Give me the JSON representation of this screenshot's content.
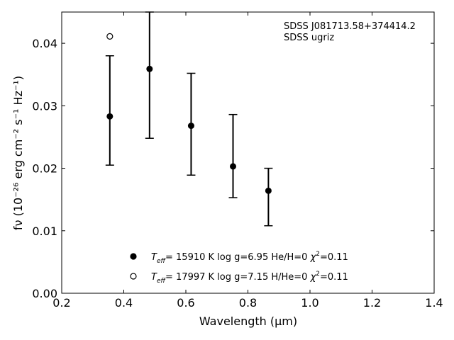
{
  "chart_data": {
    "type": "scatter",
    "annotation": [
      "SDSS J081713.58+374414.2",
      "SDSS ugriz"
    ],
    "xlabel": "Wavelength (μm)",
    "ylabel": "fν (10⁻²⁶ erg cm⁻² s⁻¹ Hz⁻¹)",
    "xlim": [
      0.2,
      1.4
    ],
    "ylim": [
      0.0,
      0.045
    ],
    "xticks": [
      0.2,
      0.4,
      0.6,
      0.8,
      1.0,
      1.2,
      1.4
    ],
    "xtick_labels": [
      "0.2",
      "0.4",
      "0.6",
      "0.8",
      "1.0",
      "1.2",
      "1.4"
    ],
    "yticks": [
      0.0,
      0.01,
      0.02,
      0.03,
      0.04
    ],
    "ytick_labels": [
      "0.00",
      "0.01",
      "0.02",
      "0.03",
      "0.04"
    ],
    "grid": false,
    "legend_position": "bottom-center",
    "observed": {
      "x": [
        0.355,
        0.483,
        0.617,
        0.752,
        0.866
      ],
      "y": [
        0.0283,
        0.0359,
        0.0268,
        0.0203,
        0.0164
      ],
      "yerr_low": [
        0.0205,
        0.0248,
        0.0189,
        0.0153,
        0.0108
      ],
      "yerr_high": [
        0.038,
        0.045,
        0.0352,
        0.0286,
        0.02
      ]
    },
    "series": [
      {
        "name": "Teff= 15910 K  log g=6.95  He/H=0  χ²=0.11",
        "marker": "filled-circle",
        "x": [],
        "y": []
      },
      {
        "name": "Teff= 17997 K  log g=7.15  H/He=0  χ²=0.11",
        "marker": "open-circle",
        "x": [
          0.355
        ],
        "y": [
          0.0411
        ]
      }
    ],
    "legend": [
      {
        "marker": "filled-circle",
        "parts": [
          "T",
          "eff",
          "= 15910 K  log g=6.95  He/H=0  ",
          "χ",
          "2",
          "=0.11"
        ]
      },
      {
        "marker": "open-circle",
        "parts": [
          "T",
          "eff",
          "= 17997 K  log g=7.15  H/He=0  ",
          "χ",
          "2",
          "=0.11"
        ]
      }
    ],
    "colors": {
      "marker": "#000000",
      "background": "#ffffff"
    }
  }
}
